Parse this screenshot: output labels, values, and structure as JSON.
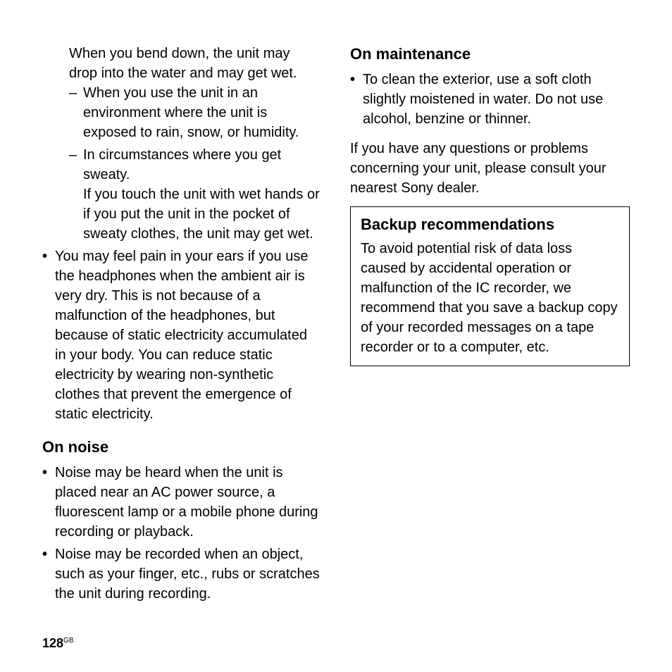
{
  "left": {
    "intro_continuation": "When you bend down, the unit may drop into the water and may get wet.",
    "dash_items": [
      "When you use the unit in an environment where the unit is exposed to rain, snow, or humidity.",
      "In circumstances where you get sweaty.\nIf you touch the unit with wet hands or if you put the unit in the pocket of sweaty clothes, the unit may get wet."
    ],
    "bullet_static": "You may feel pain in your ears if you use the headphones when the ambient air is very dry. This is not because of a malfunction of the headphones, but because of static electricity accumulated in your body. You can reduce static electricity by wearing non-synthetic clothes that prevent the emergence of static electricity.",
    "noise_heading": "On noise",
    "noise_items": [
      "Noise may be heard when the unit is placed near an AC power source, a fluorescent lamp or a mobile phone during recording or playback.",
      "Noise may be recorded when an object, such as your finger, etc., rubs or scratches the unit during recording."
    ]
  },
  "right": {
    "maint_heading": "On maintenance",
    "maint_items": [
      "To clean the exterior, use a soft cloth slightly moistened in water. Do not use alcohol, benzine or thinner."
    ],
    "questions_para": "If you have any questions or problems concerning your unit, please consult your nearest Sony dealer.",
    "box_heading": "Backup recommendations",
    "box_body": "To avoid potential risk of data loss caused by accidental operation or malfunction of the IC recorder, we recommend that you save a backup copy of your recorded messages on a tape recorder or to a computer, etc."
  },
  "page_number": "128",
  "page_locale": "GB"
}
